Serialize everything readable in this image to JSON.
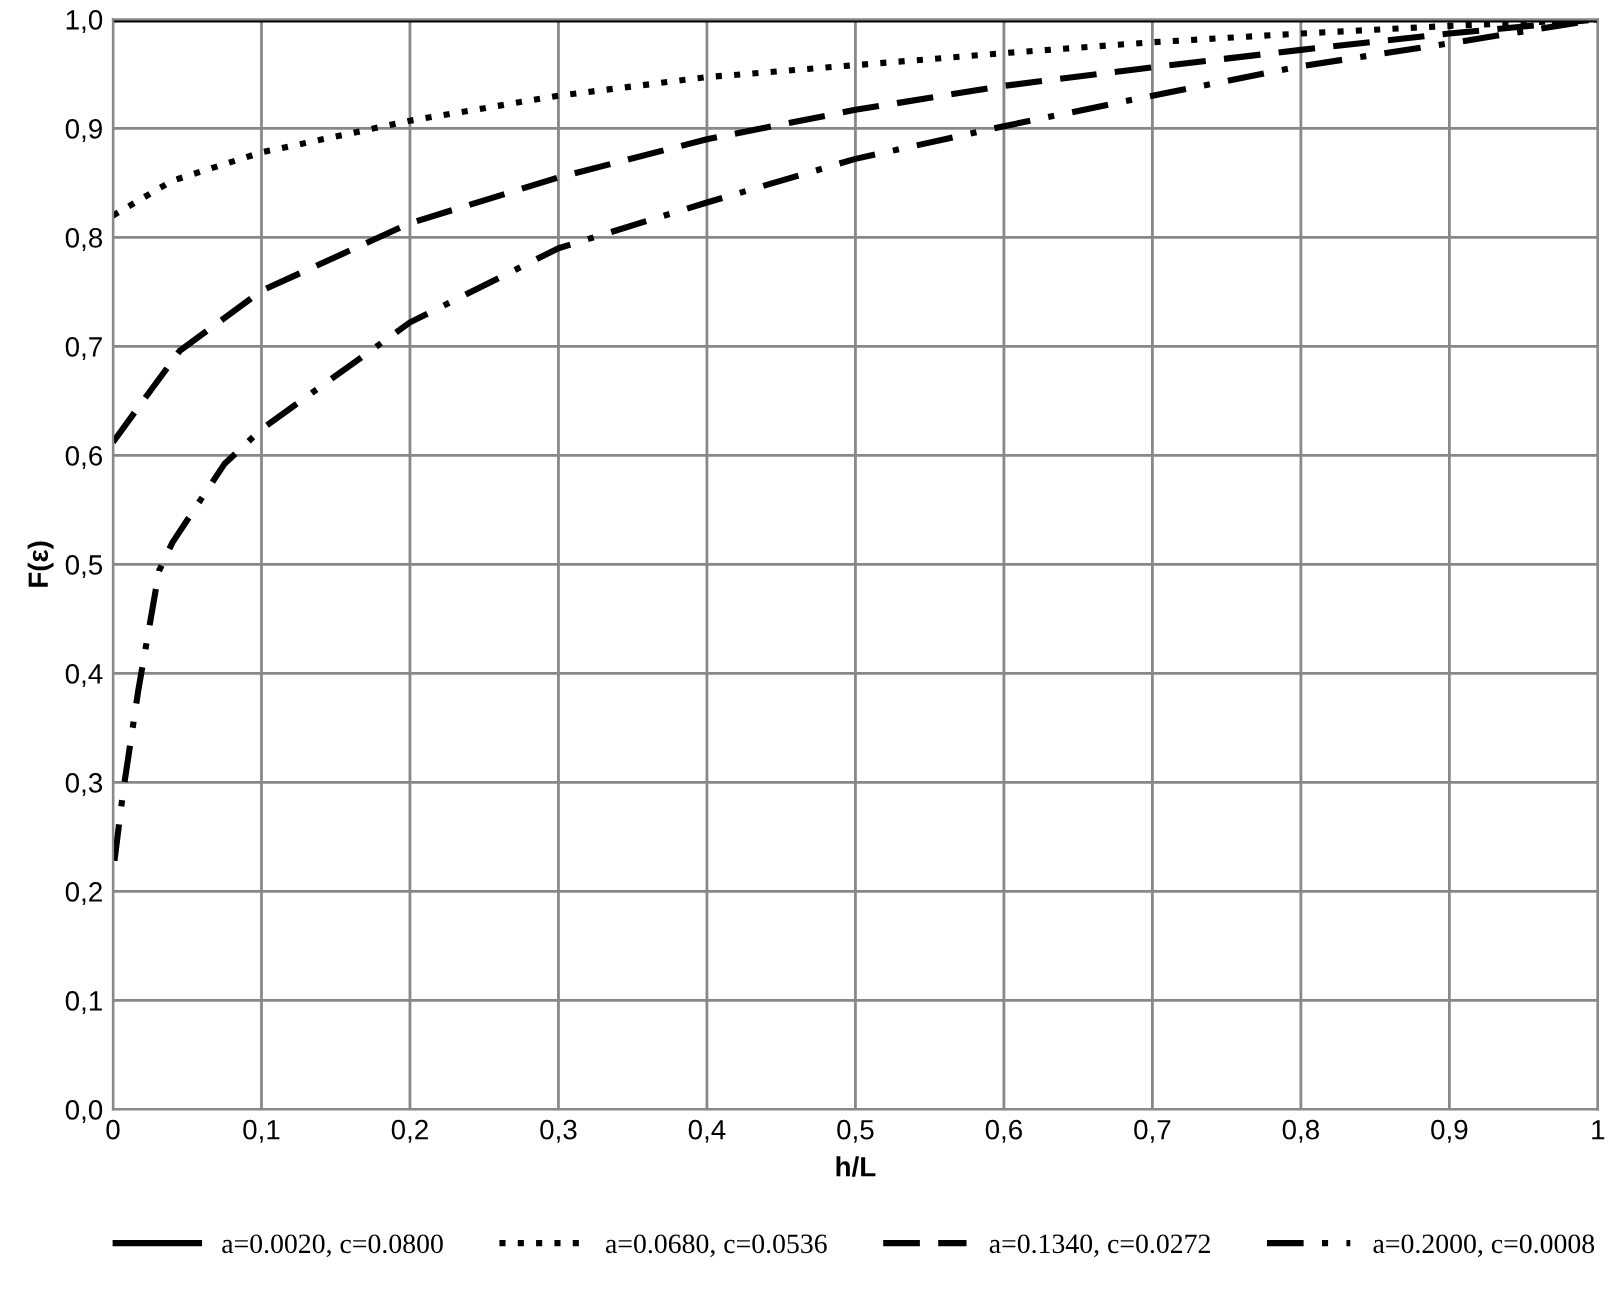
{
  "chart_data": {
    "type": "line",
    "xlabel": "h/L",
    "ylabel": "F(ε)",
    "xlim": [
      0,
      1
    ],
    "ylim": [
      0,
      1
    ],
    "xticks": [
      {
        "value": 0,
        "label": "0"
      },
      {
        "value": 0.1,
        "label": "0,1"
      },
      {
        "value": 0.2,
        "label": "0,2"
      },
      {
        "value": 0.3,
        "label": "0,3"
      },
      {
        "value": 0.4,
        "label": "0,4"
      },
      {
        "value": 0.5,
        "label": "0,5"
      },
      {
        "value": 0.6,
        "label": "0,6"
      },
      {
        "value": 0.7,
        "label": "0,7"
      },
      {
        "value": 0.8,
        "label": "0,8"
      },
      {
        "value": 0.9,
        "label": "0,9"
      },
      {
        "value": 1,
        "label": "1"
      }
    ],
    "yticks": [
      {
        "value": 0,
        "label": "0,0"
      },
      {
        "value": 0.1,
        "label": "0,1"
      },
      {
        "value": 0.2,
        "label": "0,2"
      },
      {
        "value": 0.3,
        "label": "0,3"
      },
      {
        "value": 0.4,
        "label": "0,4"
      },
      {
        "value": 0.5,
        "label": "0,5"
      },
      {
        "value": 0.6,
        "label": "0,6"
      },
      {
        "value": 0.7,
        "label": "0,7"
      },
      {
        "value": 0.8,
        "label": "0,8"
      },
      {
        "value": 0.9,
        "label": "0,9"
      },
      {
        "value": 1,
        "label": "1,0"
      }
    ],
    "grid": true,
    "legend": "bottom",
    "marker": "none",
    "series": [
      {
        "name": "a=0.0020, c=0.0800",
        "color": "#000000",
        "line_style": "solid",
        "x": [
          0,
          0.1,
          0.2,
          0.3,
          0.4,
          0.5,
          0.6,
          0.7,
          0.8,
          0.9,
          1
        ],
        "values": [
          1.0,
          1.0,
          1.0,
          1.0,
          1.0,
          1.0,
          1.0,
          1.0,
          1.0,
          1.0,
          1.0
        ]
      },
      {
        "name": "a=0.0680, c=0.0536",
        "color": "#000000",
        "line_style": "dotted",
        "x": [
          0,
          0.04,
          0.1,
          0.2,
          0.3,
          0.4,
          0.5,
          0.6,
          0.7,
          0.8,
          0.9,
          1
        ],
        "values": [
          0.82,
          0.852,
          0.878,
          0.907,
          0.93,
          0.947,
          0.958,
          0.969,
          0.979,
          0.987,
          0.994,
          1.0
        ]
      },
      {
        "name": "a=0.1340, c=0.0272",
        "color": "#000000",
        "line_style": "dashed",
        "x": [
          0,
          0.017,
          0.045,
          0.1,
          0.2,
          0.3,
          0.4,
          0.5,
          0.6,
          0.7,
          0.8,
          0.9,
          1
        ],
        "values": [
          0.612,
          0.644,
          0.696,
          0.751,
          0.813,
          0.855,
          0.89,
          0.917,
          0.939,
          0.956,
          0.972,
          0.987,
          1.0
        ]
      },
      {
        "name": "a=0.2000, c=0.0008",
        "color": "#000000",
        "line_style": "dashdot",
        "x": [
          0.001,
          0.007,
          0.017,
          0.031,
          0.04,
          0.075,
          0.1,
          0.2,
          0.3,
          0.4,
          0.5,
          0.6,
          0.7,
          0.8,
          0.9,
          1
        ],
        "values": [
          0.228,
          0.293,
          0.384,
          0.494,
          0.52,
          0.592,
          0.624,
          0.722,
          0.79,
          0.832,
          0.872,
          0.902,
          0.93,
          0.957,
          0.978,
          1.0
        ]
      }
    ]
  }
}
